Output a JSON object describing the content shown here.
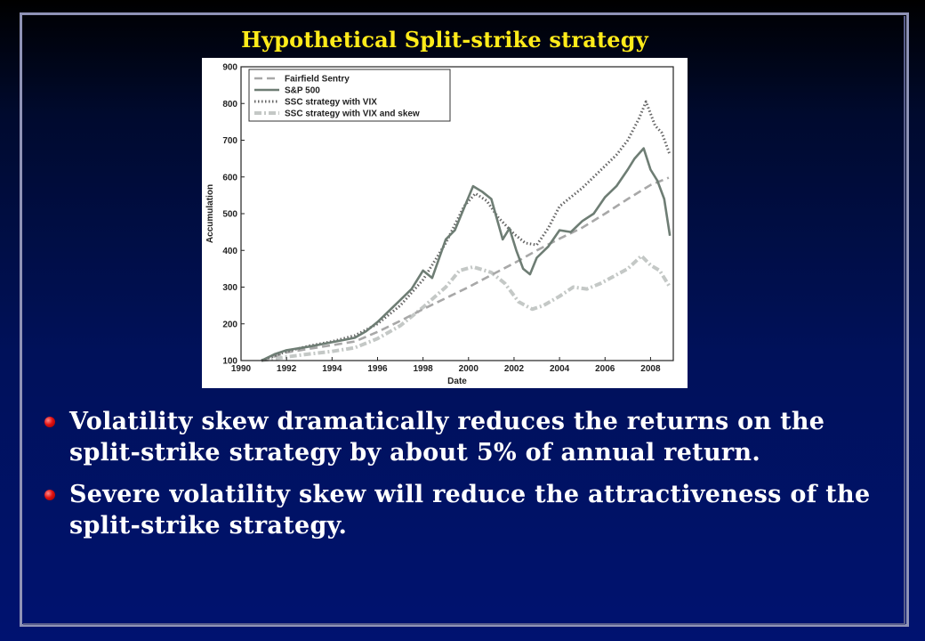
{
  "slide": {
    "title": "Hypothetical Split-strike strategy",
    "bullets": [
      "Volatility skew dramatically reduces the returns on the split-strike strategy by about 5% of annual return.",
      "Severe volatility skew will reduce the attractiveness of the split-strike strategy."
    ]
  },
  "chart_data": {
    "type": "line",
    "title": "",
    "xlabel": "Date",
    "ylabel": "Accumulation",
    "xlim": [
      1990,
      2009
    ],
    "ylim": [
      100,
      900
    ],
    "x_ticks": [
      1990,
      1992,
      1994,
      1996,
      1998,
      2000,
      2002,
      2004,
      2006,
      2008
    ],
    "y_ticks": [
      100,
      200,
      300,
      400,
      500,
      600,
      700,
      800,
      900
    ],
    "legend_position": "top-left",
    "grid": false,
    "series": [
      {
        "name": "Fairfield Sentry",
        "style": "dashed",
        "color": "#a8a8a8",
        "points": [
          [
            1990.9,
            100
          ],
          [
            1992,
            122
          ],
          [
            1994,
            142
          ],
          [
            1995,
            152
          ],
          [
            1996,
            178
          ],
          [
            1997,
            208
          ],
          [
            1998,
            240
          ],
          [
            1999,
            270
          ],
          [
            2000,
            300
          ],
          [
            2001,
            333
          ],
          [
            2002,
            365
          ],
          [
            2003,
            400
          ],
          [
            2004,
            432
          ],
          [
            2005,
            462
          ],
          [
            2006,
            500
          ],
          [
            2007,
            540
          ],
          [
            2008,
            578
          ],
          [
            2008.8,
            598
          ]
        ]
      },
      {
        "name": "S&P 500",
        "style": "solid",
        "color": "#6e7d74",
        "points": [
          [
            1990.9,
            100
          ],
          [
            1991.5,
            118
          ],
          [
            1992,
            128
          ],
          [
            1993,
            138
          ],
          [
            1994,
            150
          ],
          [
            1995,
            162
          ],
          [
            1995.5,
            180
          ],
          [
            1996,
            205
          ],
          [
            1996.5,
            235
          ],
          [
            1997,
            265
          ],
          [
            1997.5,
            295
          ],
          [
            1998,
            345
          ],
          [
            1998.4,
            325
          ],
          [
            1999,
            430
          ],
          [
            1999.4,
            455
          ],
          [
            1999.8,
            515
          ],
          [
            2000.2,
            575
          ],
          [
            2000.6,
            560
          ],
          [
            2001,
            540
          ],
          [
            2001.5,
            430
          ],
          [
            2001.8,
            460
          ],
          [
            2002.1,
            400
          ],
          [
            2002.4,
            350
          ],
          [
            2002.7,
            335
          ],
          [
            2003,
            380
          ],
          [
            2003.5,
            410
          ],
          [
            2004,
            455
          ],
          [
            2004.5,
            450
          ],
          [
            2005,
            480
          ],
          [
            2005.5,
            500
          ],
          [
            2006,
            545
          ],
          [
            2006.5,
            575
          ],
          [
            2007,
            620
          ],
          [
            2007.3,
            650
          ],
          [
            2007.7,
            678
          ],
          [
            2008,
            620
          ],
          [
            2008.3,
            590
          ],
          [
            2008.6,
            540
          ],
          [
            2008.85,
            440
          ]
        ]
      },
      {
        "name": "SSC strategy with VIX",
        "style": "dotted",
        "color": "#666666",
        "points": [
          [
            1990.9,
            100
          ],
          [
            1992,
            125
          ],
          [
            1993,
            140
          ],
          [
            1994,
            152
          ],
          [
            1995,
            168
          ],
          [
            1996,
            200
          ],
          [
            1997,
            250
          ],
          [
            1998,
            320
          ],
          [
            1999,
            420
          ],
          [
            1999.8,
            520
          ],
          [
            2000.3,
            555
          ],
          [
            2000.8,
            535
          ],
          [
            2001.3,
            490
          ],
          [
            2002,
            445
          ],
          [
            2002.5,
            420
          ],
          [
            2003,
            415
          ],
          [
            2003.5,
            460
          ],
          [
            2004,
            520
          ],
          [
            2004.5,
            545
          ],
          [
            2005,
            570
          ],
          [
            2005.5,
            600
          ],
          [
            2006,
            630
          ],
          [
            2006.5,
            660
          ],
          [
            2007,
            700
          ],
          [
            2007.5,
            760
          ],
          [
            2007.8,
            805
          ],
          [
            2008.2,
            740
          ],
          [
            2008.5,
            720
          ],
          [
            2008.85,
            660
          ]
        ]
      },
      {
        "name": "SSC strategy with VIX and skew",
        "style": "dash-dot",
        "color": "#c4c8c6",
        "points": [
          [
            1990.9,
            100
          ],
          [
            1992,
            110
          ],
          [
            1993,
            118
          ],
          [
            1994,
            125
          ],
          [
            1995,
            135
          ],
          [
            1996,
            160
          ],
          [
            1997,
            195
          ],
          [
            1998,
            245
          ],
          [
            1999,
            300
          ],
          [
            1999.6,
            345
          ],
          [
            2000.2,
            355
          ],
          [
            2001,
            340
          ],
          [
            2001.6,
            310
          ],
          [
            2002.2,
            260
          ],
          [
            2002.8,
            240
          ],
          [
            2003.3,
            250
          ],
          [
            2004,
            275
          ],
          [
            2004.6,
            300
          ],
          [
            2005.2,
            295
          ],
          [
            2005.8,
            310
          ],
          [
            2006.4,
            330
          ],
          [
            2007,
            350
          ],
          [
            2007.6,
            385
          ],
          [
            2008,
            360
          ],
          [
            2008.4,
            345
          ],
          [
            2008.85,
            300
          ]
        ]
      }
    ]
  }
}
